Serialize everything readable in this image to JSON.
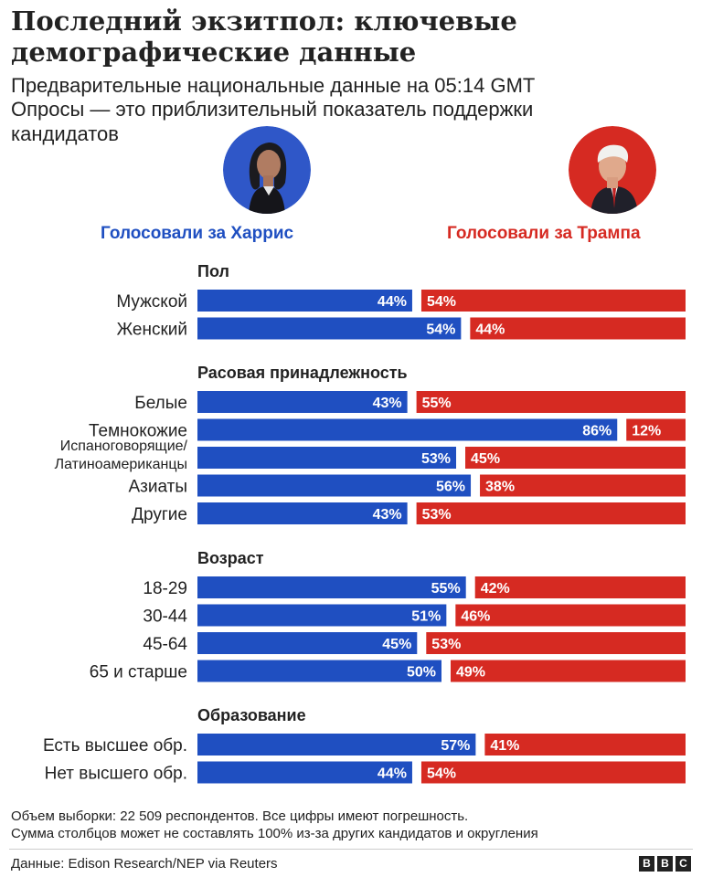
{
  "title": "Последний экзитпол: ключевые демографические данные",
  "subtitle": "Предварительные национальные данные на 05:14 GMT",
  "subtitle2": "Опросы — это приблизительный показатель поддержки кандидатов",
  "candidates": {
    "left": "Голосовали за Харрис",
    "right": "Голосовали за Трампа"
  },
  "colors": {
    "harris": "#1f4fc1",
    "trump": "#d62a22",
    "harris_portrait_bg": "#2f57c8",
    "trump_portrait_bg": "#d62a22"
  },
  "chart_data": {
    "type": "bar",
    "orientation": "horizontal-diverging",
    "series": [
      {
        "name": "Голосовали за Харрис"
      },
      {
        "name": "Голосовали за Трампа"
      }
    ],
    "groups": [
      {
        "label": "Пол",
        "rows": [
          {
            "label": "Мужской",
            "harris": 44,
            "trump": 54
          },
          {
            "label": "Женский",
            "harris": 54,
            "trump": 44
          }
        ]
      },
      {
        "label": "Расовая принадлежность",
        "rows": [
          {
            "label": "Белые",
            "harris": 43,
            "trump": 55
          },
          {
            "label": "Темнокожие",
            "harris": 86,
            "trump": 12
          },
          {
            "label": "Испаноговорящие/ Латиноамериканцы",
            "label_lines": [
              "Испаноговорящие/",
              "Латиноамериканцы"
            ],
            "harris": 53,
            "trump": 45
          },
          {
            "label": "Азиаты",
            "harris": 56,
            "trump": 38
          },
          {
            "label": "Другие",
            "harris": 43,
            "trump": 53
          }
        ]
      },
      {
        "label": "Возраст",
        "rows": [
          {
            "label": "18-29",
            "harris": 55,
            "trump": 42
          },
          {
            "label": "30-44",
            "harris": 51,
            "trump": 46
          },
          {
            "label": "45-64",
            "harris": 45,
            "trump": 53
          },
          {
            "label": "65 и старше",
            "harris": 50,
            "trump": 49
          }
        ]
      },
      {
        "label": "Образование",
        "rows": [
          {
            "label": "Есть высшее обр.",
            "harris": 57,
            "trump": 41
          },
          {
            "label": "Нет высшего обр.",
            "harris": 44,
            "trump": 54
          }
        ]
      }
    ]
  },
  "footnote1": "Объем выборки: 22 509 респондентов. Все цифры имеют погрешность.",
  "footnote2": "Сумма столбцов может не составлять 100% из-за других кандидатов и округления",
  "source": "Данные: Edison Research/NEP via Reuters",
  "logo": [
    "B",
    "B",
    "C"
  ]
}
